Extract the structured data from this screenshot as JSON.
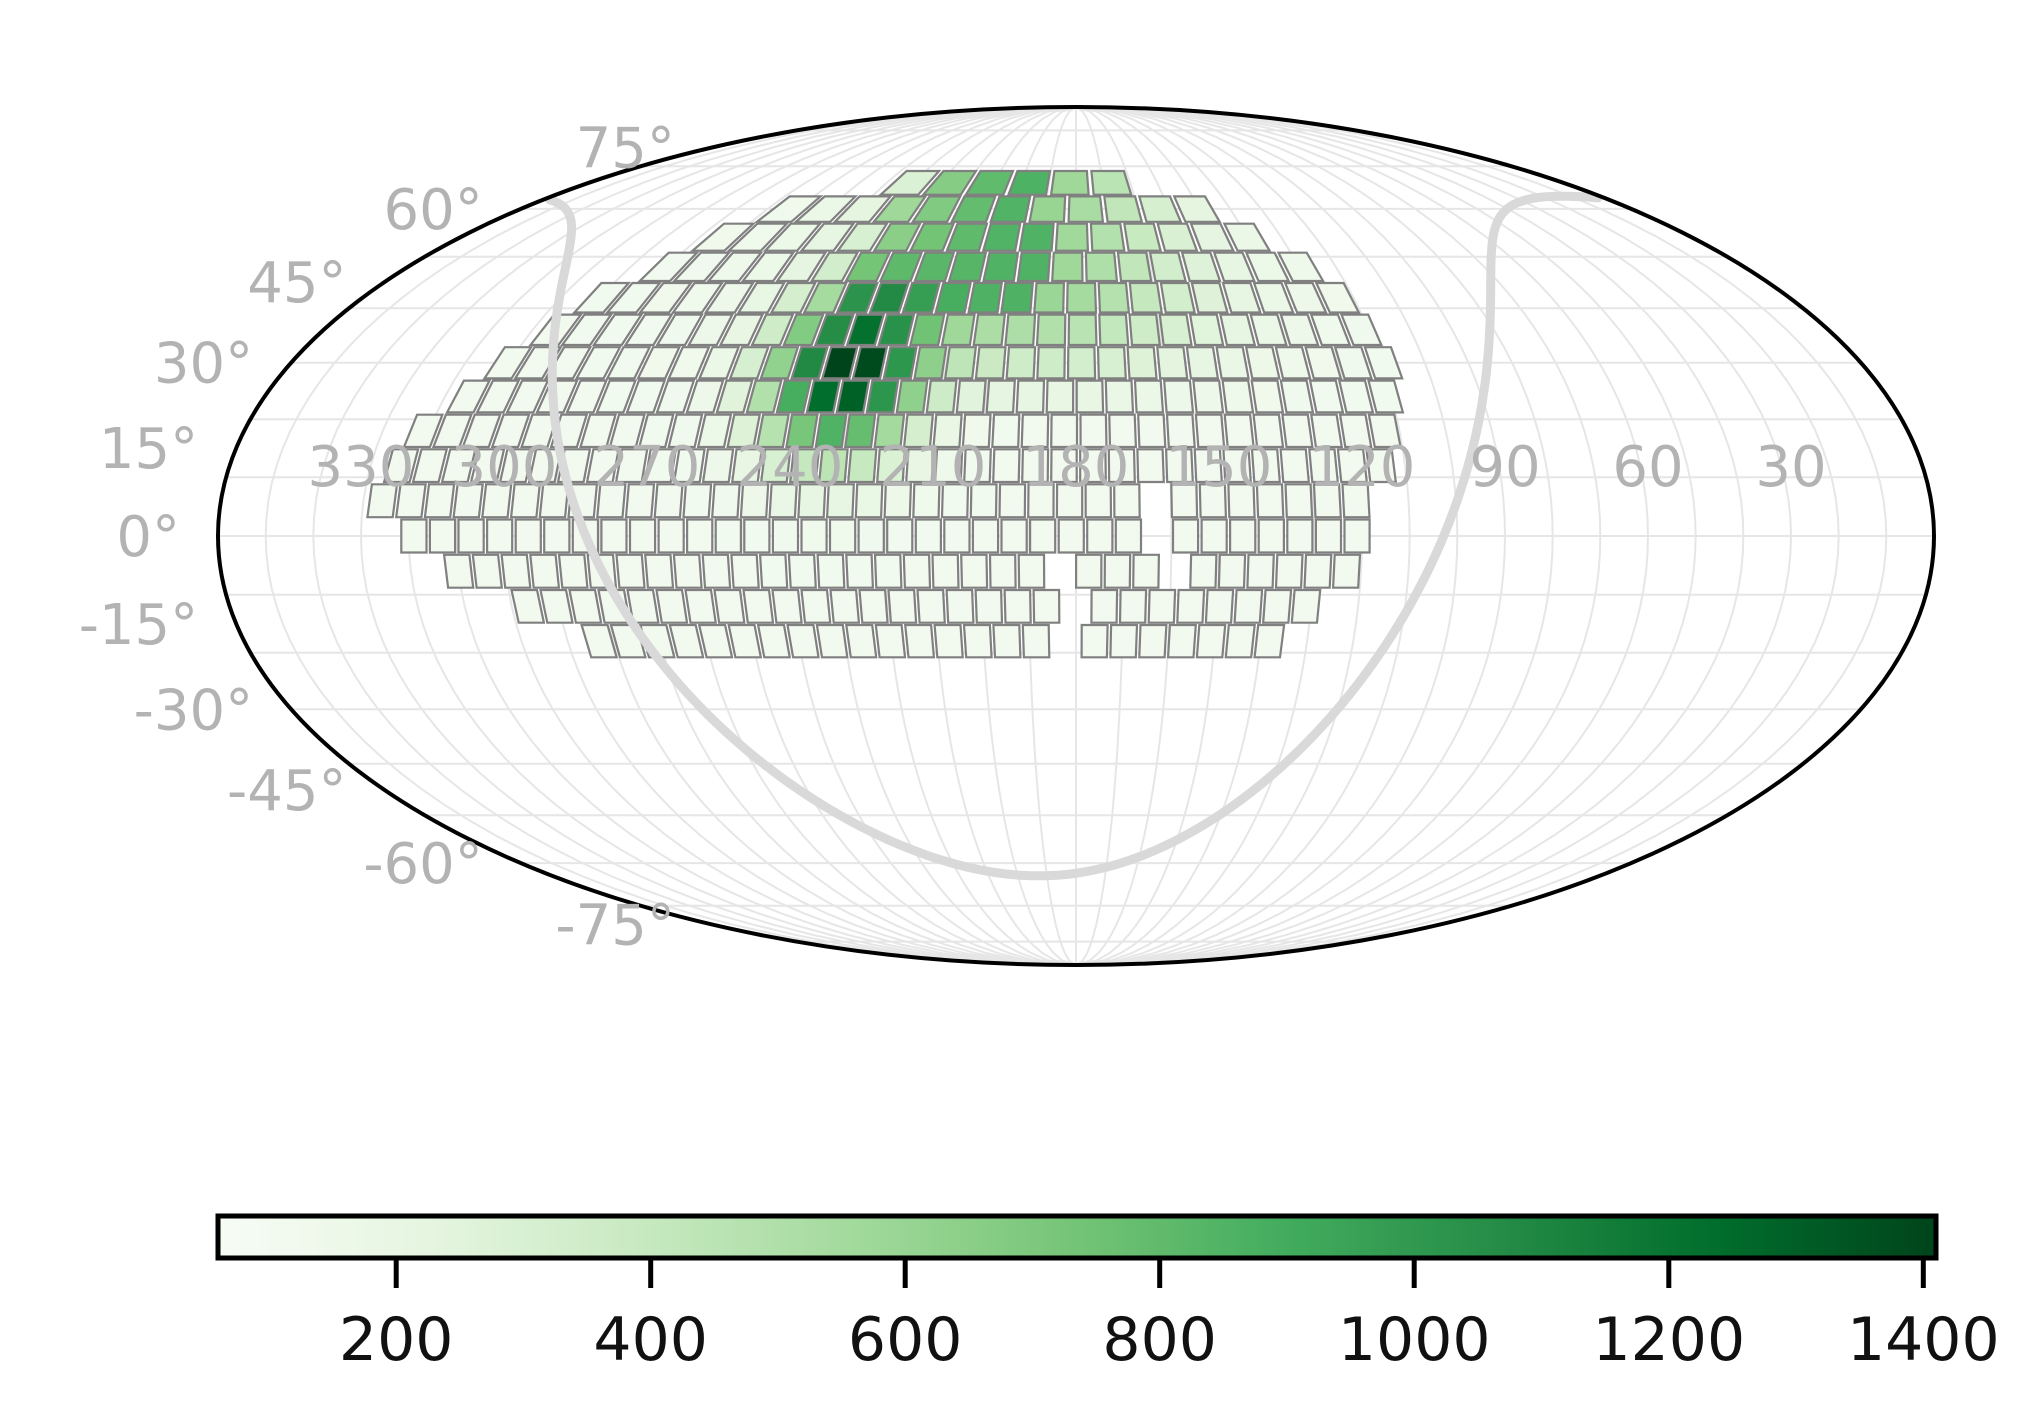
{
  "chart_data": {
    "type": "heatmap",
    "projection": "mollweide",
    "title": "",
    "xlabel": "",
    "ylabel": "",
    "grid": true,
    "ra_tick_labels": [
      "330",
      "300",
      "270",
      "240",
      "210",
      "180",
      "150",
      "120",
      "90",
      "60",
      "30"
    ],
    "dec_tick_labels": [
      "75°",
      "60°",
      "45°",
      "30°",
      "15°",
      "0°",
      "-15°",
      "-30°",
      "-45°",
      "-60°",
      "-75°"
    ],
    "ra_ticks": [
      330,
      300,
      270,
      240,
      210,
      180,
      150,
      120,
      90,
      60,
      30
    ],
    "dec_ticks": [
      75,
      60,
      45,
      30,
      15,
      0,
      -15,
      -30,
      -45,
      -60,
      -75
    ],
    "colormap": "Greens",
    "colors": {
      "low": "#f7fcf5",
      "high": "#00441b",
      "tile_edge": "#808080",
      "galactic_plane": "#d9d9d9"
    },
    "colorbar": {
      "orientation": "horizontal",
      "location": "bottom",
      "vmin": 60,
      "vmax": 1410,
      "ticks": [
        200,
        400,
        600,
        800,
        1000,
        1200,
        1400
      ],
      "tick_labels": [
        "200",
        "400",
        "600",
        "800",
        "1000",
        "1200",
        "1400"
      ]
    },
    "coverage_note_values": {
      "bands": [
        {
          "dec_center": 66,
          "ra_min": 160,
          "ra_max": 255
        },
        {
          "dec_center": 60,
          "ra_min": 135,
          "ra_max": 280
        },
        {
          "dec_center": 54,
          "ra_min": 125,
          "ra_max": 290
        },
        {
          "dec_center": 48,
          "ra_min": 115,
          "ra_max": 300
        },
        {
          "dec_center": 42,
          "ra_min": 110,
          "ra_max": 305
        },
        {
          "dec_center": 36,
          "ra_min": 108,
          "ra_max": 310
        },
        {
          "dec_center": 30,
          "ra_min": 106,
          "ra_max": 315
        },
        {
          "dec_center": 24,
          "ra_min": 108,
          "ra_max": 318
        },
        {
          "dec_center": 18,
          "ra_min": 110,
          "ra_max": 325
        },
        {
          "dec_center": 12,
          "ra_min": 112,
          "ra_max": 330
        },
        {
          "dec_center": 6,
          "ra_min": 118,
          "ra_max": 332
        },
        {
          "dec_center": 0,
          "ra_min": 118,
          "ra_max": 325
        },
        {
          "dec_center": -6,
          "ra_min": 120,
          "ra_max": 315
        },
        {
          "dec_center": -12,
          "ra_min": 128,
          "ra_max": 300
        },
        {
          "dec_center": -18,
          "ra_min": 135,
          "ra_max": 290
        }
      ],
      "peak_value": 1400,
      "peak_ra": 232,
      "peak_dec": 28
    }
  }
}
